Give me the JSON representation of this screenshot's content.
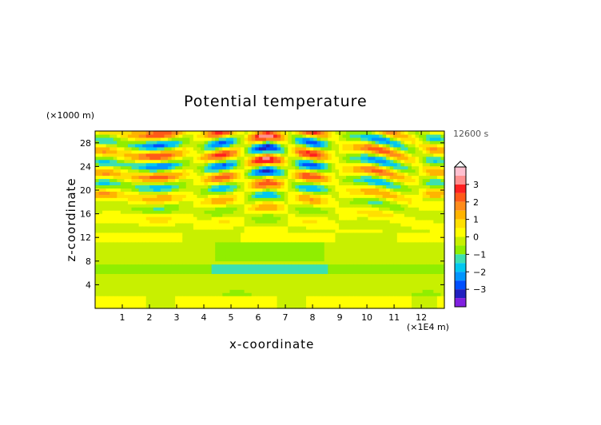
{
  "chart_data": {
    "type": "heatmap",
    "title": "Potential temperature",
    "xlabel": "x-coordinate",
    "ylabel": "z-coordinate",
    "x_units": "(×1E4 m)",
    "y_units": "(×1000 m)",
    "time_label": "12600 s",
    "xlim": [
      0,
      12.85
    ],
    "ylim": [
      0,
      30
    ],
    "x_ticks": [
      1,
      2,
      3,
      4,
      5,
      6,
      7,
      8,
      9,
      10,
      11,
      12
    ],
    "y_ticks": [
      4,
      8,
      12,
      16,
      20,
      24,
      28
    ],
    "colorbar": {
      "ticks": [
        3,
        2,
        1,
        0,
        -1,
        -2,
        -3
      ],
      "levels": [
        {
          "lo": 3.5,
          "hi": 4.0,
          "color": "#ffc0d0"
        },
        {
          "lo": 3.0,
          "hi": 3.5,
          "color": "#ff9090"
        },
        {
          "lo": 2.5,
          "hi": 3.0,
          "color": "#ff2020"
        },
        {
          "lo": 2.0,
          "hi": 2.5,
          "color": "#ff5a18"
        },
        {
          "lo": 1.5,
          "hi": 2.0,
          "color": "#ff8c1a"
        },
        {
          "lo": 1.0,
          "hi": 1.5,
          "color": "#ffb400"
        },
        {
          "lo": 0.5,
          "hi": 1.0,
          "color": "#ffe000"
        },
        {
          "lo": 0.0,
          "hi": 0.5,
          "color": "#ffff00"
        },
        {
          "lo": -0.5,
          "hi": 0.0,
          "color": "#c8f000"
        },
        {
          "lo": -1.0,
          "hi": -0.5,
          "color": "#90ee00"
        },
        {
          "lo": -1.5,
          "hi": -1.0,
          "color": "#3ce0b0"
        },
        {
          "lo": -2.0,
          "hi": -1.5,
          "color": "#00c8f0"
        },
        {
          "lo": -2.5,
          "hi": -2.0,
          "color": "#0096ff"
        },
        {
          "lo": -3.0,
          "hi": -2.5,
          "color": "#0050ff"
        },
        {
          "lo": -3.5,
          "hi": -3.0,
          "color": "#2020c0"
        },
        {
          "lo": -4.0,
          "hi": -3.5,
          "color": "#8020e0"
        }
      ]
    },
    "description_of_field": "Wave pattern of potential temperature perturbation; strongest (about ±3) between z=16 and z=30 near x=4-9; weak (about 0 to -1) below z=12."
  }
}
